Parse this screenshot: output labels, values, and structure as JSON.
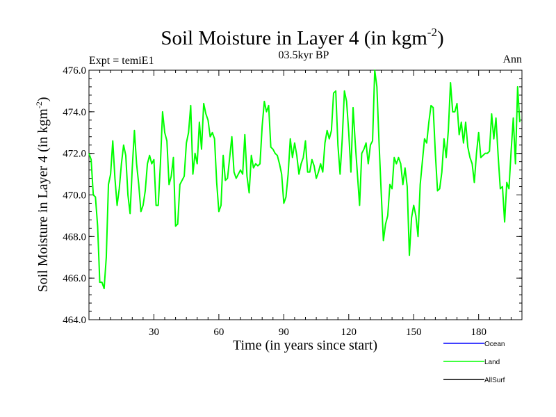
{
  "chart_data": {
    "type": "line",
    "title": "Soil Moisture in Layer 4 (in kgm",
    "title_sup": "-2",
    "title_close": ")",
    "subtitle_left": "Expt = temiE1",
    "subtitle_center": "03.5kyr BP",
    "subtitle_right": "Ann",
    "xlabel": "Time (in years since start)",
    "ylabel": "Soil Moisture in Layer 4 (in kgm",
    "ylabel_sup": "-2",
    "ylabel_close": ")",
    "xlim": [
      0,
      200
    ],
    "ylim": [
      464.0,
      476.0
    ],
    "x_ticks": [
      30,
      60,
      90,
      120,
      150,
      180
    ],
    "y_ticks": [
      "464.0",
      "466.0",
      "468.0",
      "470.0",
      "472.0",
      "474.0",
      "476.0"
    ],
    "legend": [
      {
        "name": "Ocean",
        "color": "#0000ff"
      },
      {
        "name": "Land",
        "color": "#00ff00"
      },
      {
        "name": "AllSurf",
        "color": "#000000"
      }
    ],
    "series": [
      {
        "name": "Land",
        "color": "#00ff00",
        "x_start": 0,
        "x_step": 1,
        "values": [
          472.0,
          471.7,
          470.0,
          469.9,
          468.5,
          465.8,
          465.8,
          465.5,
          467.0,
          470.5,
          471.0,
          472.6,
          470.8,
          469.5,
          470.3,
          471.5,
          472.4,
          471.9,
          470.0,
          469.1,
          471.3,
          473.1,
          471.5,
          470.5,
          469.2,
          469.5,
          470.2,
          471.5,
          471.9,
          471.5,
          471.7,
          469.5,
          469.5,
          471.5,
          474.0,
          473.0,
          472.6,
          470.5,
          470.9,
          471.8,
          468.5,
          468.6,
          470.5,
          470.7,
          470.9,
          472.5,
          473.0,
          474.3,
          471.0,
          472.0,
          471.5,
          473.5,
          472.2,
          474.4,
          473.9,
          473.6,
          472.8,
          473.0,
          472.7,
          470.6,
          469.2,
          469.5,
          471.9,
          470.7,
          470.8,
          471.8,
          472.8,
          471.1,
          470.8,
          471.0,
          471.2,
          471.0,
          472.9,
          470.9,
          470.1,
          471.9,
          471.3,
          471.5,
          471.4,
          471.5,
          473.3,
          474.5,
          474.0,
          474.3,
          472.3,
          472.2,
          472.0,
          471.9,
          471.5,
          471.0,
          469.6,
          469.9,
          471.0,
          472.7,
          471.8,
          472.5,
          471.9,
          471.0,
          471.5,
          471.8,
          472.6,
          471.1,
          471.1,
          471.7,
          471.4,
          470.8,
          471.1,
          471.5,
          471.1,
          472.5,
          473.1,
          472.7,
          473.1,
          474.9,
          475.0,
          472.4,
          471.0,
          472.7,
          475.0,
          474.5,
          473.0,
          471.1,
          474.2,
          472.5,
          471.0,
          469.5,
          472.0,
          472.2,
          472.5,
          471.5,
          472.4,
          472.6,
          476.0,
          475.2,
          472.5,
          470.1,
          467.8,
          468.6,
          469.0,
          470.5,
          470.3,
          471.8,
          471.5,
          471.8,
          471.5,
          470.5,
          471.3,
          470.4,
          467.1,
          468.9,
          469.5,
          469.0,
          468.0,
          470.5,
          471.6,
          472.7,
          472.5,
          473.5,
          474.3,
          474.2,
          472.0,
          470.2,
          470.3,
          471.1,
          472.7,
          471.8,
          473.1,
          475.4,
          474.0,
          474.0,
          474.4,
          472.9,
          473.5,
          472.5,
          473.5,
          472.3,
          471.8,
          471.5,
          470.6,
          472.0,
          473.0,
          471.8,
          471.9,
          472.0,
          472.0,
          472.1,
          473.9,
          472.7,
          473.7,
          471.9,
          470.3,
          470.4,
          468.7,
          470.6,
          470.3,
          472.1,
          473.7,
          471.5,
          475.2,
          473.5
        ]
      }
    ]
  }
}
